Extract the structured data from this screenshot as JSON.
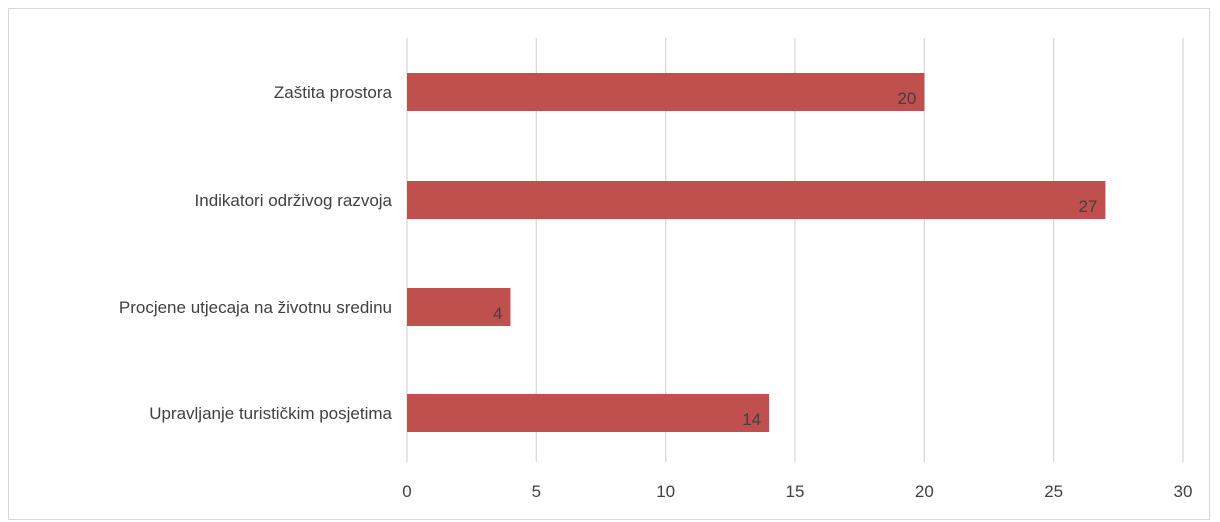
{
  "chart_data": {
    "type": "bar",
    "orientation": "horizontal",
    "categories": [
      "Zaštita prostora",
      "Indikatori održivog razvoja",
      "Procjene utjecaja na životnu sredinu",
      "Upravljanje turističkim posjetima"
    ],
    "values": [
      20,
      27,
      4,
      14
    ],
    "data_labels": [
      "20",
      "27",
      "4",
      "14"
    ],
    "xlim": [
      0,
      30
    ],
    "x_ticks": [
      0,
      5,
      10,
      15,
      20,
      25,
      30
    ],
    "x_tick_labels": [
      "0",
      "5",
      "10",
      "15",
      "20",
      "25",
      "30"
    ],
    "grid": true,
    "legend": "none",
    "bar_color": "#c0504d",
    "gridline_color": "#d9d9d9",
    "text_color": "#404040"
  }
}
